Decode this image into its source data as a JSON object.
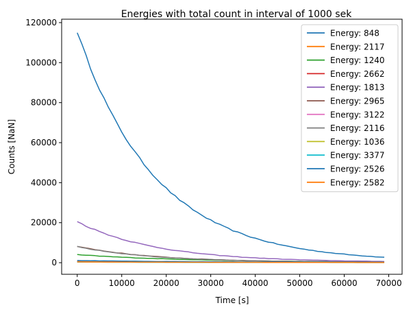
{
  "chart_data": {
    "type": "line",
    "title": "Energies with total count in interval of 1000 sek",
    "xlabel": "Time [s]",
    "ylabel": "Counts [NaN]",
    "xlim": [
      -3500,
      73000
    ],
    "ylim": [
      -5800,
      121700
    ],
    "xticks": [
      0,
      10000,
      20000,
      30000,
      40000,
      50000,
      60000,
      70000
    ],
    "yticks": [
      0,
      20000,
      40000,
      60000,
      80000,
      100000,
      120000
    ],
    "grid": false,
    "legend_position": "top-right",
    "series": [
      {
        "name": "Energy: 848",
        "color": "#1f77b4",
        "x0": 0,
        "y0": 115500,
        "tau": 17500,
        "floor": 500,
        "noise": 700
      },
      {
        "name": "Energy: 2117",
        "color": "#ff7f0e",
        "x0": 0,
        "y0": 800,
        "tau": 40000,
        "floor": 50,
        "noise": 15
      },
      {
        "name": "Energy: 1240",
        "color": "#2ca02c",
        "x0": 0,
        "y0": 4000,
        "tau": 25000,
        "floor": 150,
        "noise": 120
      },
      {
        "name": "Energy: 2662",
        "color": "#d62728",
        "x0": 0,
        "y0": 500,
        "tau": 40000,
        "floor": 40,
        "noise": 10
      },
      {
        "name": "Energy: 1813",
        "color": "#9467bd",
        "x0": 0,
        "y0": 20500,
        "tau": 18000,
        "floor": 200,
        "noise": 300
      },
      {
        "name": "Energy: 2965",
        "color": "#8c564b",
        "x0": 0,
        "y0": 8200,
        "tau": 17500,
        "floor": 150,
        "noise": 180
      },
      {
        "name": "Energy: 3122",
        "color": "#e377c2",
        "x0": 0,
        "y0": 500,
        "tau": 40000,
        "floor": 30,
        "noise": 10
      },
      {
        "name": "Energy: 2116",
        "color": "#7f7f7f",
        "x0": 0,
        "y0": 8000,
        "tau": 17500,
        "floor": 150,
        "noise": 180
      },
      {
        "name": "Energy: 1036",
        "color": "#bcbd22",
        "x0": 0,
        "y0": 400,
        "tau": 40000,
        "floor": 30,
        "noise": 10
      },
      {
        "name": "Energy: 3377",
        "color": "#17becf",
        "x0": 0,
        "y0": 300,
        "tau": 40000,
        "floor": 20,
        "noise": 8
      },
      {
        "name": "Energy: 2526",
        "color": "#1f77b4",
        "x0": 0,
        "y0": 1100,
        "tau": 30000,
        "floor": 60,
        "noise": 40
      },
      {
        "name": "Energy: 2582",
        "color": "#ff7f0e",
        "x0": 0,
        "y0": 350,
        "tau": 40000,
        "floor": 20,
        "noise": 8
      }
    ],
    "x_end": 69500,
    "x_step": 1000
  }
}
